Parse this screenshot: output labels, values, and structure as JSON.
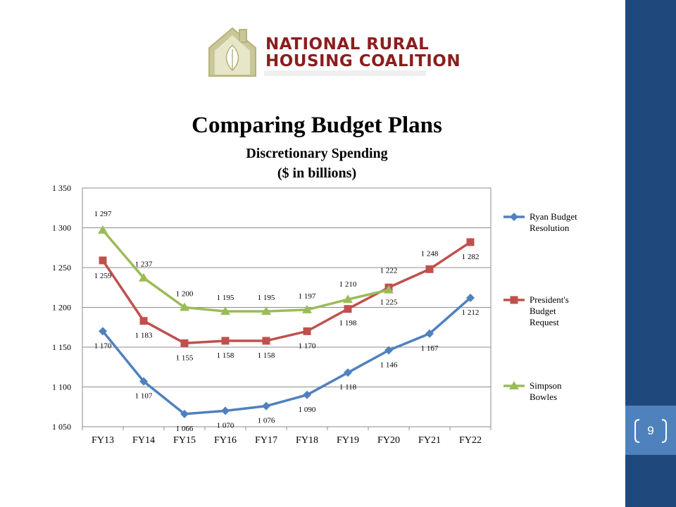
{
  "logo": {
    "line1": "NATIONAL RURAL",
    "line2": "HOUSING COALITION"
  },
  "slide": {
    "page_number": "9"
  },
  "colors": {
    "sidebar": "#1f497d",
    "accent": "#4f81bd",
    "ryan": "#4f81bd",
    "president": "#c0504d",
    "simpson": "#9bbb59"
  },
  "chart_data": {
    "type": "line",
    "title": "Comparing Budget Plans",
    "subtitle_line1": "Discretionary Spending",
    "subtitle_line2": "($ in billions)",
    "categories": [
      "FY13",
      "FY14",
      "FY15",
      "FY16",
      "FY17",
      "FY18",
      "FY19",
      "FY20",
      "FY21",
      "FY22"
    ],
    "ylim": [
      1050,
      1350
    ],
    "y_ticks": [
      1050,
      1100,
      1150,
      1200,
      1250,
      1300,
      1350
    ],
    "y_tick_labels": [
      "1 050",
      "1 100",
      "1 150",
      "1 200",
      "1 250",
      "1 300",
      "1 350"
    ],
    "grid": true,
    "legend_position": "right",
    "series": [
      {
        "name": "Ryan Budget Resolution",
        "legend_lines": [
          "Ryan Budget",
          "Resolution"
        ],
        "marker": "diamond",
        "color": "#4f81bd",
        "values": [
          1170,
          1107,
          1066,
          1070,
          1076,
          1090,
          1118,
          1146,
          1167,
          1212
        ],
        "labels": [
          "1 170",
          "1 107",
          "1 066",
          "1 070",
          "1 076",
          "1 090",
          "1 118",
          "1 146",
          "1 167",
          "1 212"
        ]
      },
      {
        "name": "President's Budget Request",
        "legend_lines": [
          "President's",
          "Budget",
          "Request"
        ],
        "marker": "square",
        "color": "#c0504d",
        "values": [
          1259,
          1183,
          1155,
          1158,
          1158,
          1170,
          1198,
          1225,
          1248,
          1282
        ],
        "labels": [
          "1 259",
          "1 183",
          "1 155",
          "1 158",
          "1 158",
          "1 170",
          "1 198",
          "1 225",
          "1 248",
          "1 282"
        ]
      },
      {
        "name": "Simpson Bowles",
        "legend_lines": [
          "Simpson",
          "Bowles"
        ],
        "marker": "triangle",
        "color": "#9bbb59",
        "values": [
          1297,
          1237,
          1200,
          1195,
          1195,
          1197,
          1210,
          1222,
          null,
          null
        ],
        "labels": [
          "1 297",
          "1 237",
          "1 200",
          "1 195",
          "1 195",
          "1 197",
          "1 210",
          "1 222",
          "",
          ""
        ]
      }
    ]
  }
}
